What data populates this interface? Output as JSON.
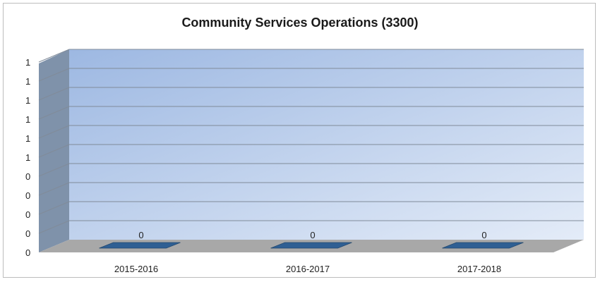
{
  "chart_data": {
    "type": "bar",
    "title": "Community Services Operations (3300)",
    "categories": [
      "2015-2016",
      "2016-2017",
      "2017-2018"
    ],
    "series": [
      {
        "values": [
          0,
          0,
          0
        ],
        "data_labels": [
          "0",
          "0",
          "0"
        ]
      }
    ],
    "y_tick_labels": [
      "0",
      "0",
      "0",
      "0",
      "0",
      "1",
      "1",
      "1",
      "1",
      "1",
      "1"
    ],
    "ylim": [
      0,
      1
    ],
    "grid": true,
    "legend": "none",
    "three_d": true,
    "colors": {
      "bar": "#2f5f93",
      "wall_top": "#9db8e2",
      "wall_bottom": "#e4ecf8",
      "side_wall": "#7f92aa",
      "floor": "#a8a8a8",
      "grid": "#808b99"
    }
  }
}
